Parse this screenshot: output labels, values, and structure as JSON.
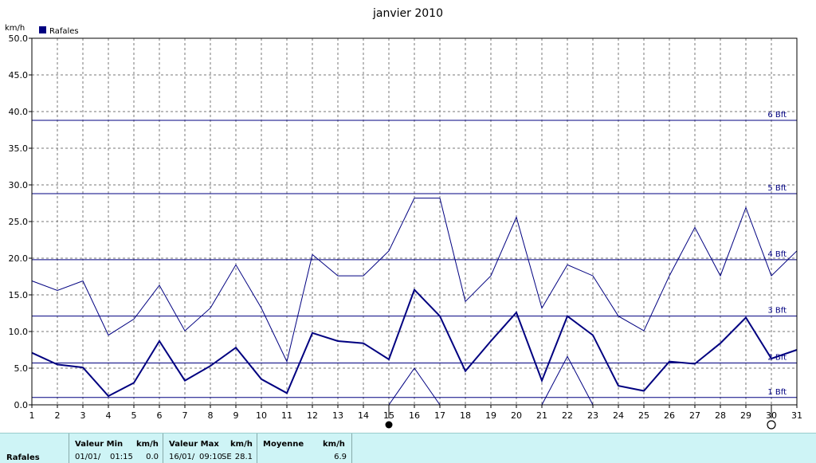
{
  "chart_data": {
    "type": "line",
    "title": "janvier 2010",
    "ylabel": "km/h",
    "legend": {
      "label": "Rafales",
      "position": "top-left",
      "color": "#000080"
    },
    "ylim": [
      0,
      50
    ],
    "yticks": [
      "0.0",
      "5.0",
      "10.0",
      "15.0",
      "20.0",
      "25.0",
      "30.0",
      "35.0",
      "40.0",
      "45.0",
      "50.0"
    ],
    "x": [
      1,
      2,
      3,
      4,
      5,
      6,
      7,
      8,
      9,
      10,
      11,
      12,
      13,
      14,
      15,
      16,
      17,
      18,
      19,
      20,
      21,
      22,
      23,
      24,
      25,
      26,
      27,
      28,
      29,
      30,
      31
    ],
    "series": [
      {
        "name": "Rafales",
        "values": [
          7.1,
          5.5,
          5.1,
          1.2,
          3.0,
          8.7,
          3.3,
          5.3,
          7.8,
          3.5,
          1.6,
          9.8,
          8.7,
          8.4,
          6.2,
          15.7,
          12.1,
          4.6,
          8.7,
          12.6,
          3.3,
          12.1,
          9.5,
          2.6,
          1.9,
          5.9,
          5.6,
          8.4,
          11.9,
          6.3,
          7.5
        ]
      },
      {
        "values": [
          16.9,
          15.6,
          16.9,
          9.5,
          11.7,
          16.3,
          10.1,
          13.2,
          19.1,
          13.2,
          5.9,
          20.5,
          17.6,
          17.6,
          21.0,
          28.2,
          28.2,
          14.1,
          17.6,
          25.6,
          13.2,
          19.1,
          17.6,
          12.1,
          10.1,
          17.6,
          24.2,
          17.6,
          26.9,
          17.6,
          21.0
        ]
      },
      {
        "values": [
          null,
          null,
          null,
          null,
          null,
          null,
          null,
          null,
          null,
          null,
          null,
          null,
          null,
          null,
          0,
          5.0,
          0,
          null,
          null,
          null,
          0,
          6.6,
          0,
          null,
          null,
          null,
          null,
          null,
          null,
          null,
          null
        ]
      }
    ],
    "reference_lines": [
      {
        "label": "1 Bft",
        "value": 1.0
      },
      {
        "label": "2 Bft",
        "value": 5.7
      },
      {
        "label": "3 Bft",
        "value": 12.1
      },
      {
        "label": "4 Bft",
        "value": 19.8
      },
      {
        "label": "5 Bft",
        "value": 28.8
      },
      {
        "label": "6 Bft",
        "value": 38.8
      }
    ],
    "moon_phases": [
      {
        "day": 15,
        "phase": "new-moon-icon"
      },
      {
        "day": 30,
        "phase": "full-moon-icon"
      }
    ],
    "grid": true
  },
  "stats": {
    "row_label": "Rafales",
    "min": {
      "header": "Valeur Min",
      "unit": "km/h",
      "date": "01/01/",
      "time": "01:15",
      "value": "0.0"
    },
    "max": {
      "header": "Valeur Max",
      "unit": "km/h",
      "date": "16/01/",
      "time": "09:10",
      "dir": "SE",
      "value": "28.1"
    },
    "avg": {
      "header": "Moyenne",
      "unit": "km/h",
      "value": "6.9"
    }
  }
}
